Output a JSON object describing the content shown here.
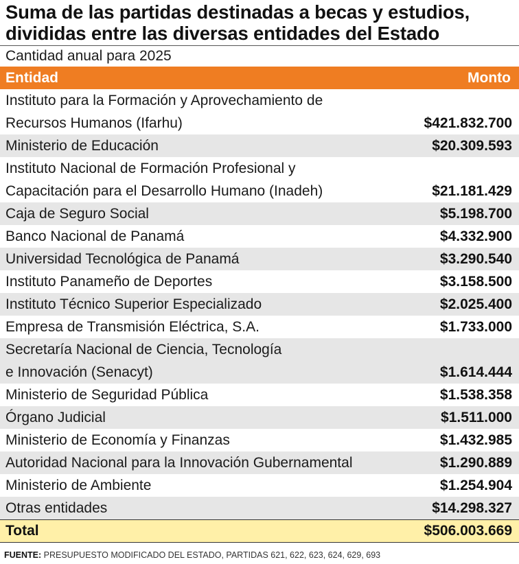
{
  "title_line1": "Suma de las partidas destinadas a becas y estudios,",
  "title_line2": "divididas entre las diversas entidades del Estado",
  "subtitle": "Cantidad anual para 2025",
  "header": {
    "entity": "Entidad",
    "amount": "Monto"
  },
  "rows": [
    {
      "line1": "Instituto para la Formación y Aprovechamiento de",
      "line2": "Recursos Humanos (Ifarhu)",
      "amount": "$421.832.700"
    },
    {
      "line1": "Ministerio de Educación",
      "amount": "$20.309.593"
    },
    {
      "line1": "Instituto Nacional de Formación Profesional y",
      "line2": "Capacitación para el Desarrollo Humano (Inadeh)",
      "amount": "$21.181.429"
    },
    {
      "line1": "Caja de Seguro Social",
      "amount": "$5.198.700"
    },
    {
      "line1": "Banco Nacional de Panamá",
      "amount": "$4.332.900"
    },
    {
      "line1": "Universidad Tecnológica de Panamá",
      "amount": "$3.290.540"
    },
    {
      "line1": "Instituto Panameño de Deportes",
      "amount": "$3.158.500"
    },
    {
      "line1": "Instituto Técnico Superior Especializado",
      "amount": "$2.025.400"
    },
    {
      "line1": "Empresa de Transmisión Eléctrica, S.A.",
      "amount": "$1.733.000"
    },
    {
      "line1": "Secretaría Nacional de Ciencia, Tecnología",
      "line2": "e Innovación (Senacyt)",
      "amount": "$1.614.444"
    },
    {
      "line1": "Ministerio de Seguridad Pública",
      "amount": "$1.538.358"
    },
    {
      "line1": "Órgano Judicial",
      "amount": "$1.511.000"
    },
    {
      "line1": "Ministerio de Economía y Finanzas",
      "amount": "$1.432.985"
    },
    {
      "line1": "Autoridad Nacional para la Innovación Gubernamental",
      "amount": "$1.290.889"
    },
    {
      "line1": "Ministerio de Ambiente",
      "amount": "$1.254.904"
    },
    {
      "line1": "Otras entidades",
      "amount": "$14.298.327"
    }
  ],
  "total": {
    "label": "Total",
    "amount": "$506.003.669"
  },
  "source": {
    "label": "FUENTE:",
    "text": " PRESUPUESTO MODIFICADO DEL ESTADO, PARTIDAS 621, 622, 623, 624, 629, 693"
  },
  "colors": {
    "header_bg": "#ef7d22",
    "alt_row_bg": "#e6e6e6",
    "total_bg": "#fff0a8"
  },
  "chart_data": {
    "type": "table",
    "columns": [
      "Entidad",
      "Monto"
    ],
    "rows": [
      [
        "Instituto para la Formación y Aprovechamiento de Recursos Humanos (Ifarhu)",
        421832700
      ],
      [
        "Ministerio de Educación",
        20309593
      ],
      [
        "Instituto Nacional de Formación Profesional y Capacitación para el Desarrollo Humano (Inadeh)",
        21181429
      ],
      [
        "Caja de Seguro Social",
        5198700
      ],
      [
        "Banco Nacional de Panamá",
        4332900
      ],
      [
        "Universidad Tecnológica de Panamá",
        3290540
      ],
      [
        "Instituto Panameño de Deportes",
        3158500
      ],
      [
        "Instituto Técnico Superior Especializado",
        2025400
      ],
      [
        "Empresa de Transmisión Eléctrica, S.A.",
        1733000
      ],
      [
        "Secretaría Nacional de Ciencia, Tecnología e Innovación (Senacyt)",
        1614444
      ],
      [
        "Ministerio de Seguridad Pública",
        1538358
      ],
      [
        "Órgano Judicial",
        1511000
      ],
      [
        "Ministerio de Economía y Finanzas",
        1432985
      ],
      [
        "Autoridad Nacional para la Innovación Gubernamental",
        1290889
      ],
      [
        "Ministerio de Ambiente",
        1254904
      ],
      [
        "Otras entidades",
        14298327
      ]
    ],
    "total": 506003669
  }
}
